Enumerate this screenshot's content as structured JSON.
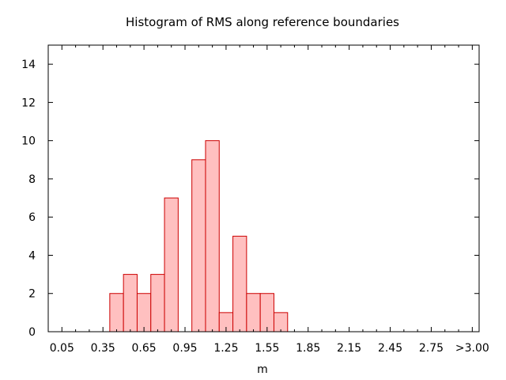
{
  "chart_data": {
    "type": "bar",
    "title": "Histogram of RMS along reference boundaries",
    "xlabel": "m",
    "ylabel": "",
    "x_ticks": [
      "0.05",
      "0.35",
      "0.65",
      "0.95",
      "1.25",
      "1.55",
      "1.85",
      "2.15",
      "2.45",
      "2.75",
      ">3.00"
    ],
    "y_ticks": [
      0,
      2,
      4,
      6,
      8,
      10,
      12,
      14
    ],
    "ylim": [
      0,
      15
    ],
    "bin_width": 0.1,
    "bins": [
      {
        "start": 0.4,
        "value": 2
      },
      {
        "start": 0.5,
        "value": 3
      },
      {
        "start": 0.6,
        "value": 2
      },
      {
        "start": 0.7,
        "value": 3
      },
      {
        "start": 0.8,
        "value": 7
      },
      {
        "start": 1.0,
        "value": 9
      },
      {
        "start": 1.1,
        "value": 10
      },
      {
        "start": 1.2,
        "value": 1
      },
      {
        "start": 1.3,
        "value": 5
      },
      {
        "start": 1.4,
        "value": 2
      },
      {
        "start": 1.5,
        "value": 2
      },
      {
        "start": 1.6,
        "value": 1
      }
    ],
    "bar_fill": "#ffc0c0",
    "bar_stroke": "#cc0000",
    "grid": false,
    "legend": "none"
  }
}
